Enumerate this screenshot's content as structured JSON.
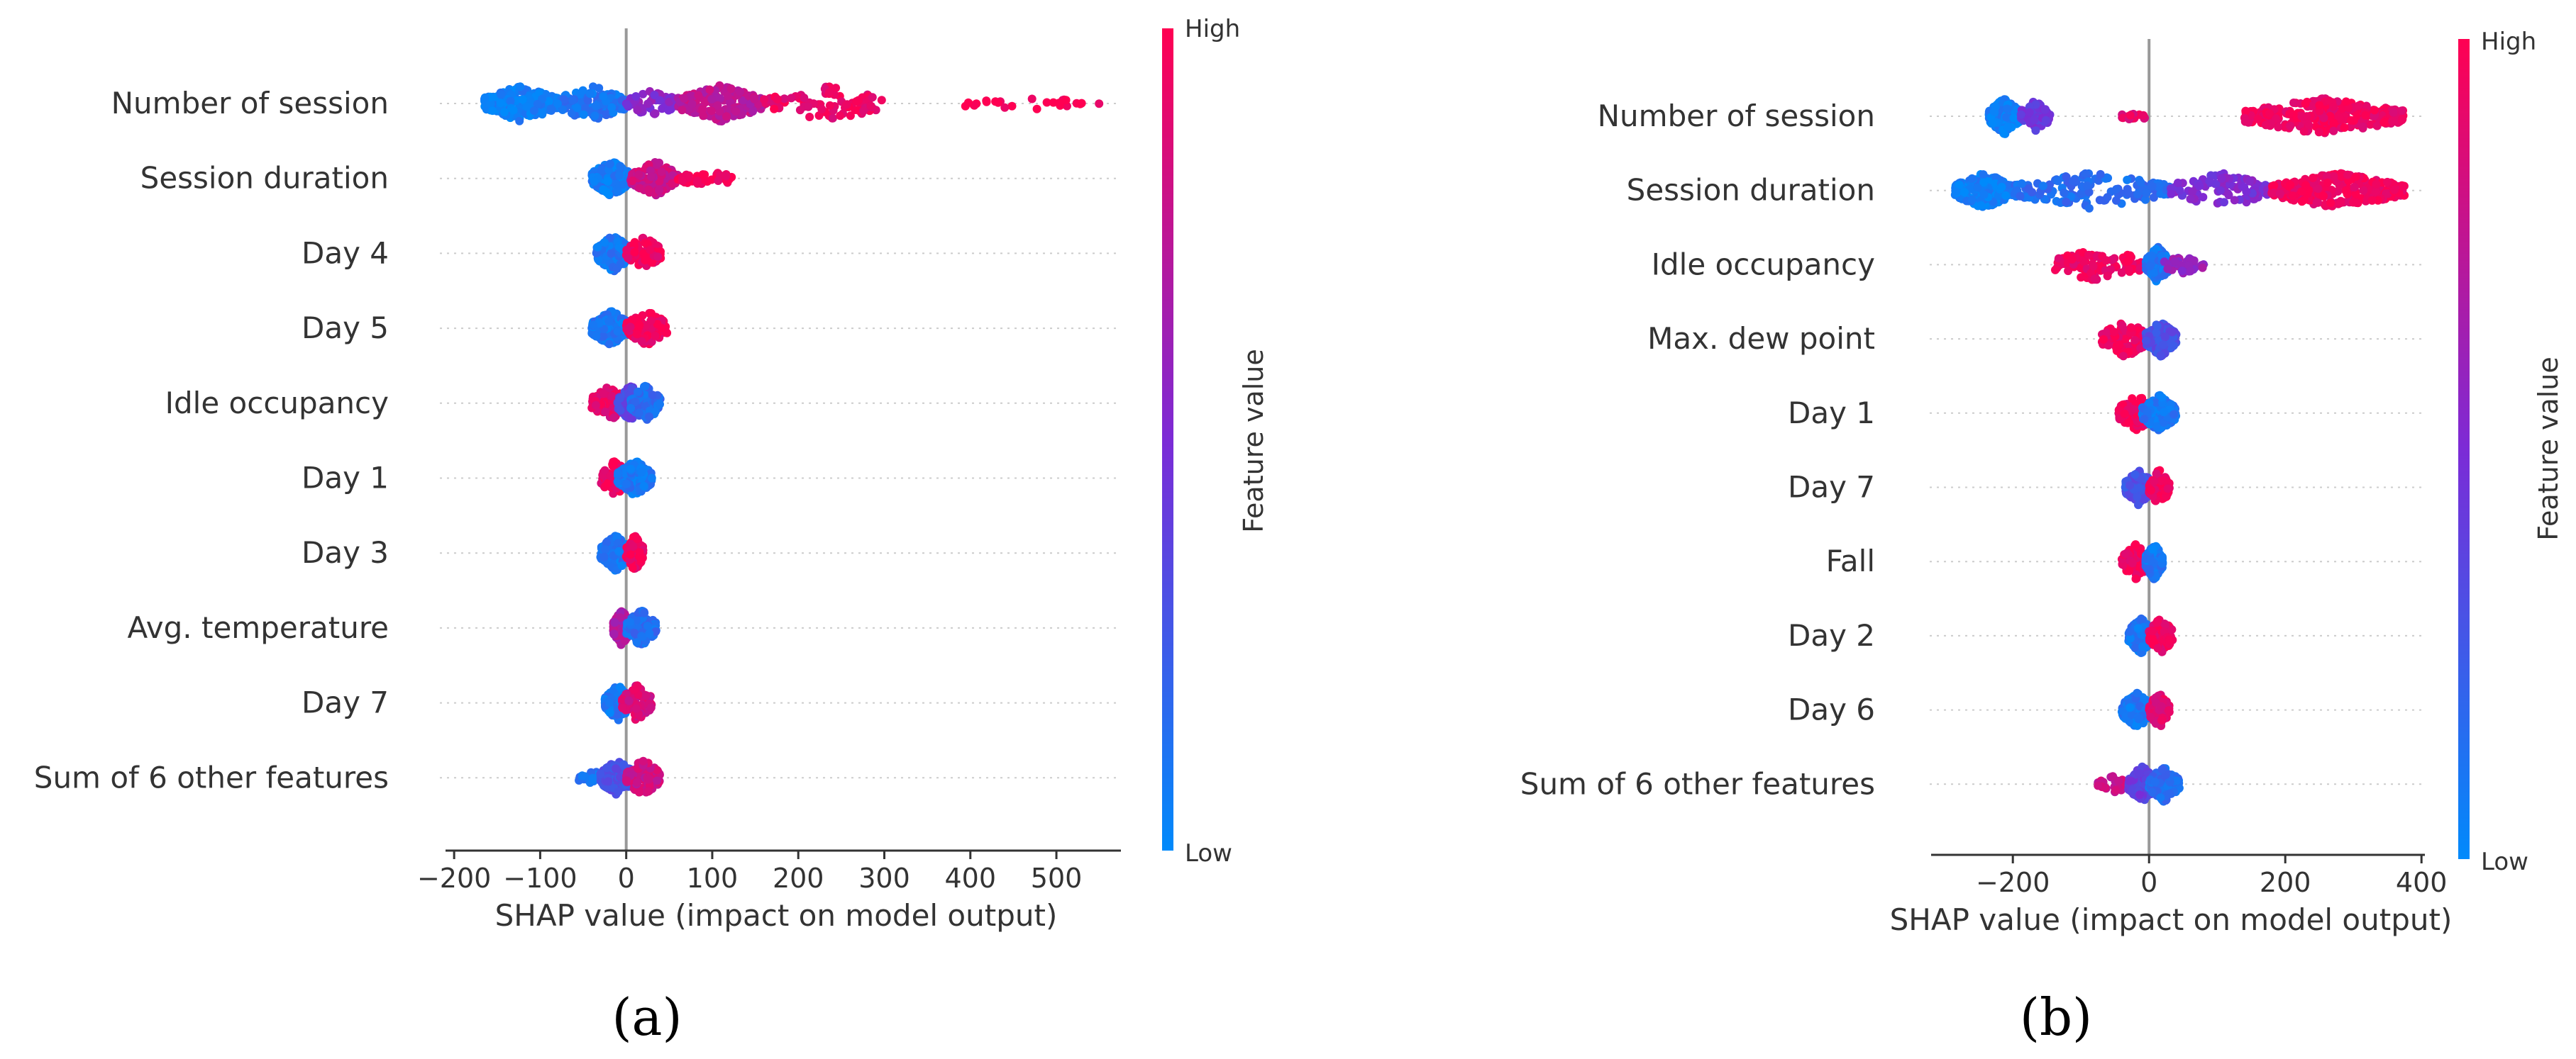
{
  "colors": {
    "low": "#008afb",
    "mid": "#7c2bd6",
    "high": "#ff0052",
    "axis": "#333333",
    "zero_line": "#999999",
    "row_grid": "#cccccc"
  },
  "chart_data": [
    {
      "type": "scatter",
      "subtype": "shap-beeswarm",
      "panel": "(a)",
      "xlabel": "SHAP value (impact on model output)",
      "xticks": [
        -200,
        -100,
        0,
        100,
        200,
        300,
        400,
        500
      ],
      "xtick_labels": [
        "−200",
        "−100",
        "0",
        "100",
        "200",
        "300",
        "400",
        "500"
      ],
      "xlim": [
        -210,
        575
      ],
      "colorbar": {
        "title": "Feature value",
        "high_label": "High",
        "low_label": "Low"
      },
      "features": [
        {
          "name": "Number of session",
          "segments": [
            {
              "from": -165,
              "to": -80,
              "value": 0.05,
              "count": 240
            },
            {
              "from": -80,
              "to": 0,
              "value": 0.12,
              "count": 120
            },
            {
              "from": 0,
              "to": 60,
              "value": 0.55,
              "count": 60
            },
            {
              "from": 60,
              "to": 160,
              "value": 0.75,
              "count": 170
            },
            {
              "from": 160,
              "to": 300,
              "value": 0.93,
              "count": 80
            },
            {
              "from": 390,
              "to": 550,
              "value": 1.0,
              "count": 26
            }
          ]
        },
        {
          "name": "Session duration",
          "segments": [
            {
              "from": -40,
              "to": 5,
              "value": 0.08,
              "count": 260
            },
            {
              "from": 5,
              "to": 60,
              "value": 0.8,
              "count": 120
            },
            {
              "from": 60,
              "to": 125,
              "value": 0.97,
              "count": 40
            }
          ]
        },
        {
          "name": "Day 4",
          "segments": [
            {
              "from": -35,
              "to": 5,
              "value": 0.1,
              "count": 200
            },
            {
              "from": 0,
              "to": 40,
              "value": 0.95,
              "count": 90
            }
          ]
        },
        {
          "name": "Day 5",
          "segments": [
            {
              "from": -40,
              "to": 5,
              "value": 0.1,
              "count": 200
            },
            {
              "from": 0,
              "to": 48,
              "value": 0.95,
              "count": 90
            }
          ]
        },
        {
          "name": "Idle occupancy",
          "segments": [
            {
              "from": -40,
              "to": 0,
              "value": 0.9,
              "count": 110
            },
            {
              "from": -10,
              "to": 20,
              "value": 0.35,
              "count": 120
            },
            {
              "from": 5,
              "to": 40,
              "value": 0.15,
              "count": 80
            }
          ]
        },
        {
          "name": "Day 1",
          "segments": [
            {
              "from": -30,
              "to": 5,
              "value": 0.95,
              "count": 90
            },
            {
              "from": -10,
              "to": 30,
              "value": 0.1,
              "count": 200
            }
          ]
        },
        {
          "name": "Day 3",
          "segments": [
            {
              "from": -30,
              "to": 5,
              "value": 0.1,
              "count": 200
            },
            {
              "from": 0,
              "to": 20,
              "value": 0.95,
              "count": 80
            }
          ]
        },
        {
          "name": "Avg. temperature",
          "segments": [
            {
              "from": -15,
              "to": 5,
              "value": 0.7,
              "count": 200
            },
            {
              "from": 0,
              "to": 35,
              "value": 0.15,
              "count": 100
            }
          ]
        },
        {
          "name": "Day 7",
          "segments": [
            {
              "from": -25,
              "to": 5,
              "value": 0.1,
              "count": 180
            },
            {
              "from": -5,
              "to": 30,
              "value": 0.85,
              "count": 100
            }
          ]
        },
        {
          "name": "Sum of 6 other features",
          "segments": [
            {
              "from": -55,
              "to": -20,
              "value": 0.1,
              "count": 30
            },
            {
              "from": -30,
              "to": 10,
              "value": 0.3,
              "count": 160
            },
            {
              "from": 0,
              "to": 40,
              "value": 0.8,
              "count": 120
            }
          ]
        }
      ]
    },
    {
      "type": "scatter",
      "subtype": "shap-beeswarm",
      "panel": "(b)",
      "xlabel": "SHAP value (impact on model output)",
      "xticks": [
        -200,
        0,
        200,
        400
      ],
      "xtick_labels": [
        "−200",
        "0",
        "200",
        "400"
      ],
      "xlim": [
        -320,
        405
      ],
      "colorbar": {
        "title": "Feature value",
        "high_label": "High",
        "low_label": "Low"
      },
      "features": [
        {
          "name": "Number of session",
          "segments": [
            {
              "from": -235,
              "to": -190,
              "value": 0.05,
              "count": 220
            },
            {
              "from": -190,
              "to": -145,
              "value": 0.45,
              "count": 70
            },
            {
              "from": -40,
              "to": -5,
              "value": 0.9,
              "count": 15
            },
            {
              "from": 140,
              "to": 375,
              "value": 0.95,
              "count": 300
            }
          ]
        },
        {
          "name": "Session duration",
          "segments": [
            {
              "from": -285,
              "to": -200,
              "value": 0.05,
              "count": 220
            },
            {
              "from": -200,
              "to": 30,
              "value": 0.15,
              "count": 140
            },
            {
              "from": 30,
              "to": 180,
              "value": 0.5,
              "count": 100
            },
            {
              "from": 180,
              "to": 375,
              "value": 0.95,
              "count": 280
            }
          ]
        },
        {
          "name": "Idle occupancy",
          "segments": [
            {
              "from": -140,
              "to": -5,
              "value": 0.95,
              "count": 110
            },
            {
              "from": -5,
              "to": 30,
              "value": 0.1,
              "count": 180
            },
            {
              "from": 20,
              "to": 80,
              "value": 0.6,
              "count": 40
            }
          ]
        },
        {
          "name": "Max. dew point",
          "segments": [
            {
              "from": -70,
              "to": 0,
              "value": 0.95,
              "count": 110
            },
            {
              "from": -5,
              "to": 40,
              "value": 0.3,
              "count": 180
            }
          ]
        },
        {
          "name": "Day 1",
          "segments": [
            {
              "from": -45,
              "to": 10,
              "value": 0.95,
              "count": 90
            },
            {
              "from": -10,
              "to": 40,
              "value": 0.1,
              "count": 200
            }
          ]
        },
        {
          "name": "Day 7",
          "segments": [
            {
              "from": -35,
              "to": 5,
              "value": 0.3,
              "count": 180
            },
            {
              "from": 0,
              "to": 30,
              "value": 0.95,
              "count": 100
            }
          ]
        },
        {
          "name": "Fall",
          "segments": [
            {
              "from": -40,
              "to": 0,
              "value": 0.95,
              "count": 90
            },
            {
              "from": -5,
              "to": 20,
              "value": 0.1,
              "count": 200
            }
          ]
        },
        {
          "name": "Day 2",
          "segments": [
            {
              "from": -30,
              "to": 5,
              "value": 0.1,
              "count": 200
            },
            {
              "from": 0,
              "to": 35,
              "value": 0.95,
              "count": 90
            }
          ]
        },
        {
          "name": "Day 6",
          "segments": [
            {
              "from": -40,
              "to": 5,
              "value": 0.1,
              "count": 200
            },
            {
              "from": 0,
              "to": 30,
              "value": 0.9,
              "count": 90
            }
          ]
        },
        {
          "name": "Sum of 6 other features",
          "segments": [
            {
              "from": -75,
              "to": -20,
              "value": 0.8,
              "count": 40
            },
            {
              "from": -30,
              "to": 10,
              "value": 0.4,
              "count": 170
            },
            {
              "from": 0,
              "to": 45,
              "value": 0.15,
              "count": 110
            }
          ]
        }
      ]
    }
  ]
}
